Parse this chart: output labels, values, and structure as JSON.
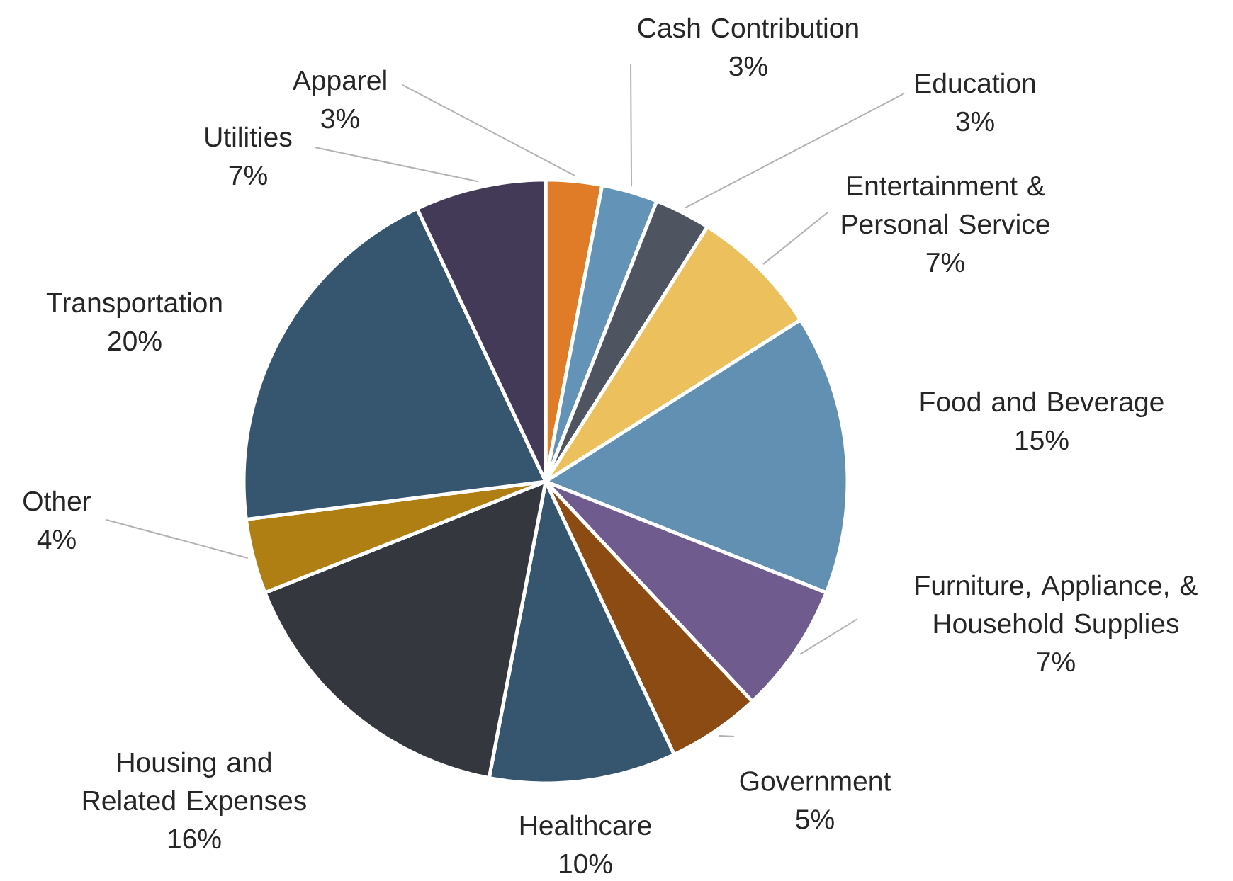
{
  "chart_data": {
    "type": "pie",
    "categories": [
      "Apparel",
      "Cash Contribution",
      "Education",
      "Entertainment & Personal Service",
      "Food and Beverage",
      "Furniture, Appliance, & Household Supplies",
      "Government",
      "Healthcare",
      "Housing and Related Expenses",
      "Other",
      "Transportation",
      "Utilities"
    ],
    "values": [
      3,
      3,
      3,
      7,
      15,
      7,
      5,
      10,
      16,
      4,
      20,
      7
    ],
    "value_labels": [
      "3%",
      "3%",
      "3%",
      "7%",
      "15%",
      "7%",
      "5%",
      "10%",
      "16%",
      "4%",
      "20%",
      "7%"
    ],
    "colors": [
      "#e07b28",
      "#6394b8",
      "#4f5461",
      "#ecc05c",
      "#6190b3",
      "#6f5b8e",
      "#8d4b14",
      "#36566f",
      "#35373f",
      "#b07f14",
      "#36566f",
      "#433a58"
    ]
  }
}
